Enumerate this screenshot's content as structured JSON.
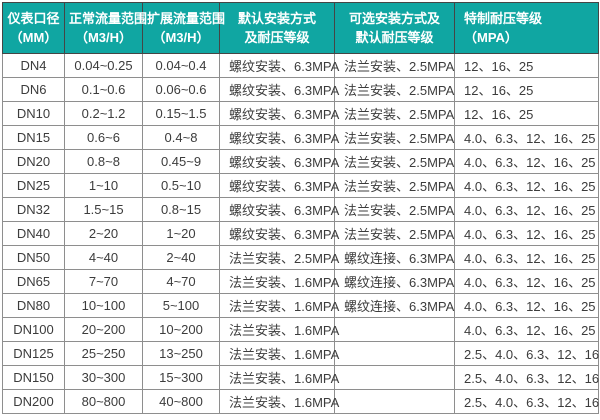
{
  "table": {
    "colors": {
      "header_bg": "#10a6a2",
      "header_text": "#ffffff",
      "body_text": "#3c3c3c",
      "grid_line": "#8e8e8e",
      "header_grid_line": "#454545"
    },
    "column_aligns": [
      "center",
      "center",
      "center",
      "left",
      "left",
      "left"
    ],
    "columns": [
      {
        "lines": [
          "仪表口径",
          "（MM）"
        ]
      },
      {
        "lines": [
          "正常流量范围",
          "（M3/H）"
        ]
      },
      {
        "lines": [
          "扩展流量范围",
          "（M3/H）"
        ]
      },
      {
        "lines": [
          "默认安装方式",
          "及耐压等级"
        ]
      },
      {
        "lines": [
          "可选安装方式及",
          "默认耐压等级"
        ]
      },
      {
        "lines": [
          "特制耐压等级",
          "（MPA）"
        ]
      }
    ],
    "rows": [
      [
        "DN4",
        "0.04~0.25",
        "0.04~0.4",
        "螺纹安装、6.3MPA",
        "法兰安装、2.5MPA",
        "12、16、25"
      ],
      [
        "DN6",
        "0.1~0.6",
        "0.06~0.6",
        "螺纹安装、6.3MPA",
        "法兰安装、2.5MPA",
        "12、16、25"
      ],
      [
        "DN10",
        "0.2~1.2",
        "0.15~1.5",
        "螺纹安装、6.3MPA",
        "法兰安装、2.5MPA",
        "12、16、25"
      ],
      [
        "DN15",
        "0.6~6",
        "0.4~8",
        "螺纹安装、6.3MPA",
        "法兰安装、2.5MPA",
        "4.0、6.3、12、16、25"
      ],
      [
        "DN20",
        "0.8~8",
        "0.45~9",
        "螺纹安装、6.3MPA",
        "法兰安装、2.5MPA",
        "4.0、6.3、12、16、25"
      ],
      [
        "DN25",
        "1~10",
        "0.5~10",
        "螺纹安装、6.3MPA",
        "法兰安装、2.5MPA",
        "4.0、6.3、12、16、25"
      ],
      [
        "DN32",
        "1.5~15",
        "0.8~15",
        "螺纹安装、6.3MPA",
        "法兰安装、2.5MPA",
        "4.0、6.3、12、16、25"
      ],
      [
        "DN40",
        "2~20",
        "1~20",
        "螺纹安装、6.3MPA",
        "法兰安装、2.5MPA",
        "4.0、6.3、12、16、25"
      ],
      [
        "DN50",
        "4~40",
        "2~40",
        "法兰安装、2.5MPA",
        "螺纹连接、6.3MPA",
        "4.0、6.3、12、16、25"
      ],
      [
        "DN65",
        "7~70",
        "4~70",
        "法兰安装、1.6MPA",
        "螺纹连接、6.3MPA",
        "4.0、6.3、12、16、25"
      ],
      [
        "DN80",
        "10~100",
        "5~100",
        "法兰安装、1.6MPA",
        "螺纹连接、6.3MPA",
        "4.0、6.3、12、16、25"
      ],
      [
        "DN100",
        "20~200",
        "10~200",
        "法兰安装、1.6MPA",
        "",
        "4.0、6.3、12、16、25"
      ],
      [
        "DN125",
        "25~250",
        "13~250",
        "法兰安装、1.6MPA",
        "",
        "2.5、4.0、6.3、12、16"
      ],
      [
        "DN150",
        "30~300",
        "15~300",
        "法兰安装、1.6MPA",
        "",
        "2.5、4.0、6.3、12、16"
      ],
      [
        "DN200",
        "80~800",
        "40~800",
        "法兰安装、1.6MPA",
        "",
        "2.5、4.0、6.3、12、16"
      ]
    ]
  }
}
